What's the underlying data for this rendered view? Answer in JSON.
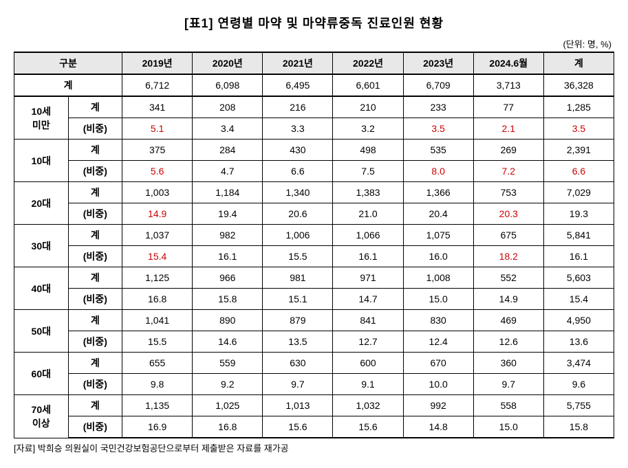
{
  "title": "[표1] 연령별 마약 및 마약류중독 진료인원 현황",
  "unit": "(단위: 명, %)",
  "headers": {
    "category": "구분",
    "years": [
      "2019년",
      "2020년",
      "2021년",
      "2022년",
      "2023년",
      "2024.6월"
    ],
    "total": "계"
  },
  "totalRow": {
    "label": "계",
    "values": [
      "6,712",
      "6,098",
      "6,495",
      "6,601",
      "6,709",
      "3,713",
      "36,328"
    ]
  },
  "ageGroups": [
    {
      "label": "10세\n미만",
      "count": {
        "label": "계",
        "values": [
          "341",
          "208",
          "216",
          "210",
          "233",
          "77",
          "1,285"
        ],
        "highlights": [
          false,
          false,
          false,
          false,
          false,
          false,
          false
        ]
      },
      "ratio": {
        "label": "(비중)",
        "values": [
          "5.1",
          "3.4",
          "3.3",
          "3.2",
          "3.5",
          "2.1",
          "3.5"
        ],
        "highlights": [
          true,
          false,
          false,
          false,
          true,
          true,
          true
        ]
      }
    },
    {
      "label": "10대",
      "count": {
        "label": "계",
        "values": [
          "375",
          "284",
          "430",
          "498",
          "535",
          "269",
          "2,391"
        ],
        "highlights": [
          false,
          false,
          false,
          false,
          false,
          false,
          false
        ]
      },
      "ratio": {
        "label": "(비중)",
        "values": [
          "5.6",
          "4.7",
          "6.6",
          "7.5",
          "8.0",
          "7.2",
          "6.6"
        ],
        "highlights": [
          true,
          false,
          false,
          false,
          true,
          true,
          true
        ]
      }
    },
    {
      "label": "20대",
      "count": {
        "label": "계",
        "values": [
          "1,003",
          "1,184",
          "1,340",
          "1,383",
          "1,366",
          "753",
          "7,029"
        ],
        "highlights": [
          false,
          false,
          false,
          false,
          false,
          false,
          false
        ]
      },
      "ratio": {
        "label": "(비중)",
        "values": [
          "14.9",
          "19.4",
          "20.6",
          "21.0",
          "20.4",
          "20.3",
          "19.3"
        ],
        "highlights": [
          true,
          false,
          false,
          false,
          false,
          true,
          false
        ]
      }
    },
    {
      "label": "30대",
      "count": {
        "label": "계",
        "values": [
          "1,037",
          "982",
          "1,006",
          "1,066",
          "1,075",
          "675",
          "5,841"
        ],
        "highlights": [
          false,
          false,
          false,
          false,
          false,
          false,
          false
        ]
      },
      "ratio": {
        "label": "(비중)",
        "values": [
          "15.4",
          "16.1",
          "15.5",
          "16.1",
          "16.0",
          "18.2",
          "16.1"
        ],
        "highlights": [
          true,
          false,
          false,
          false,
          false,
          true,
          false
        ]
      }
    },
    {
      "label": "40대",
      "count": {
        "label": "계",
        "values": [
          "1,125",
          "966",
          "981",
          "971",
          "1,008",
          "552",
          "5,603"
        ],
        "highlights": [
          false,
          false,
          false,
          false,
          false,
          false,
          false
        ]
      },
      "ratio": {
        "label": "(비중)",
        "values": [
          "16.8",
          "15.8",
          "15.1",
          "14.7",
          "15.0",
          "14.9",
          "15.4"
        ],
        "highlights": [
          false,
          false,
          false,
          false,
          false,
          false,
          false
        ]
      }
    },
    {
      "label": "50대",
      "count": {
        "label": "계",
        "values": [
          "1,041",
          "890",
          "879",
          "841",
          "830",
          "469",
          "4,950"
        ],
        "highlights": [
          false,
          false,
          false,
          false,
          false,
          false,
          false
        ]
      },
      "ratio": {
        "label": "(비중)",
        "values": [
          "15.5",
          "14.6",
          "13.5",
          "12.7",
          "12.4",
          "12.6",
          "13.6"
        ],
        "highlights": [
          false,
          false,
          false,
          false,
          false,
          false,
          false
        ]
      }
    },
    {
      "label": "60대",
      "count": {
        "label": "계",
        "values": [
          "655",
          "559",
          "630",
          "600",
          "670",
          "360",
          "3,474"
        ],
        "highlights": [
          false,
          false,
          false,
          false,
          false,
          false,
          false
        ]
      },
      "ratio": {
        "label": "(비중)",
        "values": [
          "9.8",
          "9.2",
          "9.7",
          "9.1",
          "10.0",
          "9.7",
          "9.6"
        ],
        "highlights": [
          false,
          false,
          false,
          false,
          false,
          false,
          false
        ]
      }
    },
    {
      "label": "70세\n이상",
      "count": {
        "label": "계",
        "values": [
          "1,135",
          "1,025",
          "1,013",
          "1,032",
          "992",
          "558",
          "5,755"
        ],
        "highlights": [
          false,
          false,
          false,
          false,
          false,
          false,
          false
        ]
      },
      "ratio": {
        "label": "(비중)",
        "values": [
          "16.9",
          "16.8",
          "15.6",
          "15.6",
          "14.8",
          "15.0",
          "15.8"
        ],
        "highlights": [
          false,
          false,
          false,
          false,
          false,
          false,
          false
        ]
      }
    }
  ],
  "source": "[자료] 박희승 의원실이 국민건강보험공단으로부터 제출받은 자료를 재가공",
  "colors": {
    "highlight": "#cc0000",
    "headerBg": "#e8e8e8",
    "border": "#000000",
    "bg": "#ffffff"
  }
}
